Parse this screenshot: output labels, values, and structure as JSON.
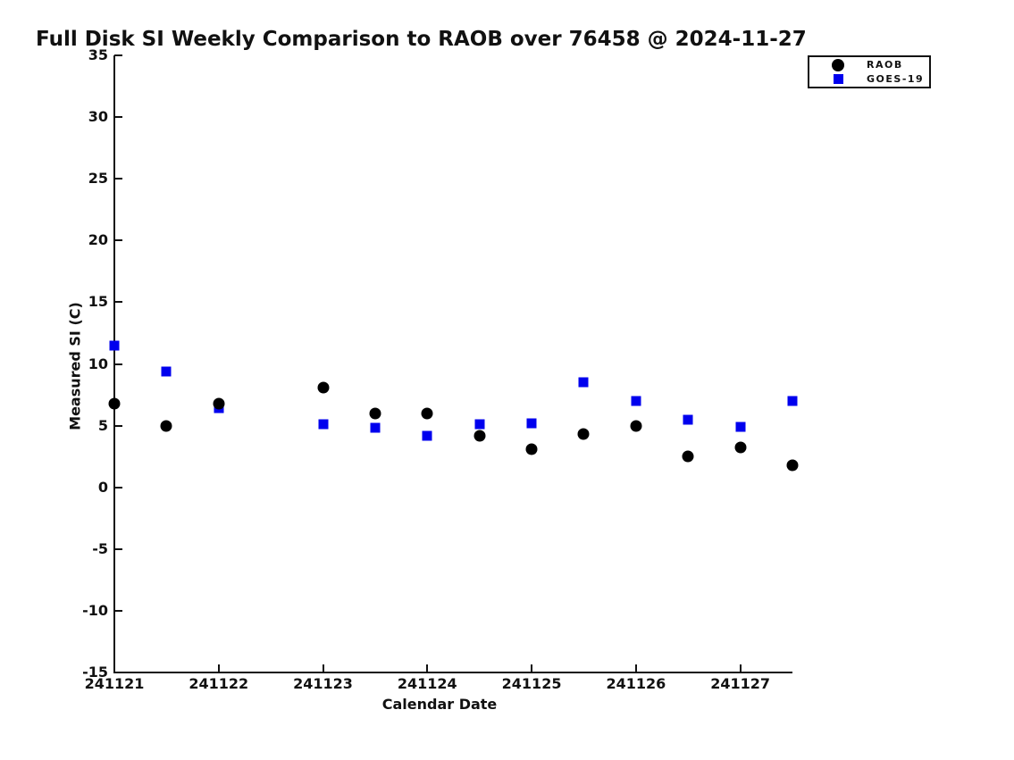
{
  "title": "Full Disk SI Weekly Comparison to RAOB over 76458 @ 2024-11-27",
  "chart_data": {
    "type": "scatter",
    "title": "Full Disk SI Weekly Comparison to RAOB over 76458 @ 2024-11-27",
    "xlabel": "Calendar Date",
    "ylabel": "Measured SI (C)",
    "xlim": [
      241121,
      241127.5
    ],
    "ylim": [
      -15,
      35
    ],
    "xticks": [
      241121,
      241122,
      241123,
      241124,
      241125,
      241126,
      241127
    ],
    "yticks": [
      35,
      30,
      25,
      20,
      15,
      10,
      5,
      0,
      -5,
      -10,
      -15
    ],
    "grid": false,
    "legend_position": "top-right-outside-overlap",
    "x": [
      241121.0,
      241121.5,
      241122.0,
      241123.0,
      241123.5,
      241124.0,
      241124.5,
      241125.0,
      241125.5,
      241126.0,
      241126.5,
      241127.0,
      241127.5
    ],
    "series": [
      {
        "name": "GOES-19",
        "marker": "square",
        "color": "#0000ee",
        "values": [
          11.5,
          9.4,
          6.4,
          5.1,
          4.8,
          4.2,
          5.1,
          5.2,
          8.5,
          7.0,
          5.5,
          4.9,
          7.0
        ]
      },
      {
        "name": "RAOB",
        "marker": "circle",
        "color": "#000000",
        "values": [
          6.8,
          5.0,
          6.8,
          8.1,
          6.0,
          6.0,
          4.2,
          3.1,
          4.3,
          5.0,
          2.5,
          3.2,
          1.8
        ]
      }
    ],
    "legend_order": [
      "RAOB",
      "GOES-19"
    ]
  }
}
